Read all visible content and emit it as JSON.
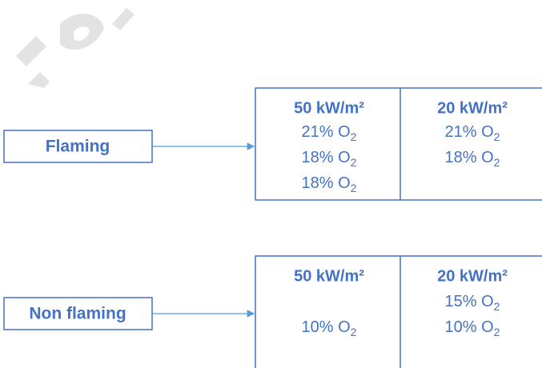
{
  "groups": [
    {
      "label": "Flaming",
      "columns": [
        {
          "heading": "50 kW/m²",
          "rows": [
            {
              "text": "21% O",
              "subscript": "2"
            },
            {
              "text": "18% O",
              "subscript": "2"
            },
            {
              "text": "18% O",
              "subscript": "2"
            }
          ]
        },
        {
          "heading": "20 kW/m²",
          "rows": [
            {
              "text": "21% O",
              "subscript": "2"
            },
            {
              "text": "18% O",
              "subscript": "2"
            }
          ]
        }
      ]
    },
    {
      "label": "Non flaming",
      "columns": [
        {
          "heading": "50 kW/m²",
          "rows": [
            null,
            {
              "text": "10% O",
              "subscript": "2"
            }
          ]
        },
        {
          "heading": "20 kW/m²",
          "rows": [
            {
              "text": "15% O",
              "subscript": "2"
            },
            {
              "text": "10% O",
              "subscript": "2"
            }
          ]
        }
      ]
    }
  ]
}
